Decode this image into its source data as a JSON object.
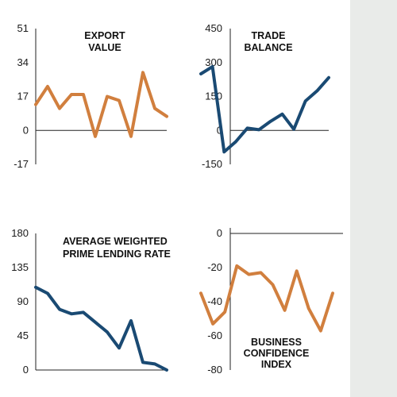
{
  "colors": {
    "orange": "#d17f3e",
    "navy": "#1a4a73",
    "axis": "#222222",
    "strip": "#e9ebe9"
  },
  "chart_data": [
    {
      "id": "export",
      "type": "line",
      "title_lines": [
        "EXPORT",
        "VALUE"
      ],
      "title_align": "center",
      "color": "orange",
      "ylim": [
        -17,
        51
      ],
      "yticks": [
        51,
        34,
        17,
        0,
        -17
      ],
      "ytick_labels": [
        "51",
        "34",
        "17",
        "0",
        "-17"
      ],
      "grid": false,
      "values": [
        13,
        22,
        11,
        18,
        18,
        -3,
        17,
        15,
        -3,
        29,
        11,
        7
      ]
    },
    {
      "id": "trade",
      "type": "line",
      "title_lines": [
        "TRADE",
        "BALANCE"
      ],
      "title_align": "center",
      "color": "navy",
      "ylim": [
        -150,
        450
      ],
      "yticks": [
        450,
        300,
        150,
        0,
        -150
      ],
      "ytick_labels": [
        "450",
        "300",
        "150",
        "0",
        "-150"
      ],
      "grid": false,
      "values": [
        250,
        282,
        -95,
        -50,
        10,
        3,
        40,
        72,
        5,
        130,
        175,
        233
      ]
    },
    {
      "id": "prime",
      "type": "line",
      "title_lines": [
        "AVERAGE WEIGHTED",
        "PRIME LENDING RATE"
      ],
      "title_align": "left",
      "color": "navy",
      "ylim": [
        0,
        180
      ],
      "yticks": [
        180,
        135,
        90,
        45,
        0
      ],
      "ytick_labels": [
        "180",
        "135",
        "90",
        "45",
        "0"
      ],
      "grid": false,
      "values": [
        109,
        101,
        80,
        74,
        76,
        63,
        50,
        29,
        65,
        10,
        8,
        0
      ]
    },
    {
      "id": "confidence",
      "type": "line",
      "title_lines": [
        "BUSINESS",
        "CONFIDENCE",
        "INDEX"
      ],
      "title_align": "center",
      "color": "orange",
      "ylim": [
        -80,
        0
      ],
      "yticks": [
        0,
        -20,
        -40,
        -60,
        -80
      ],
      "ytick_labels": [
        "0",
        "-20",
        "-40",
        "-60",
        "-80"
      ],
      "grid": false,
      "values": [
        -35,
        -53,
        -46,
        -19,
        -24,
        -23,
        -30,
        -45,
        -22,
        -44,
        -57,
        -35
      ]
    }
  ]
}
